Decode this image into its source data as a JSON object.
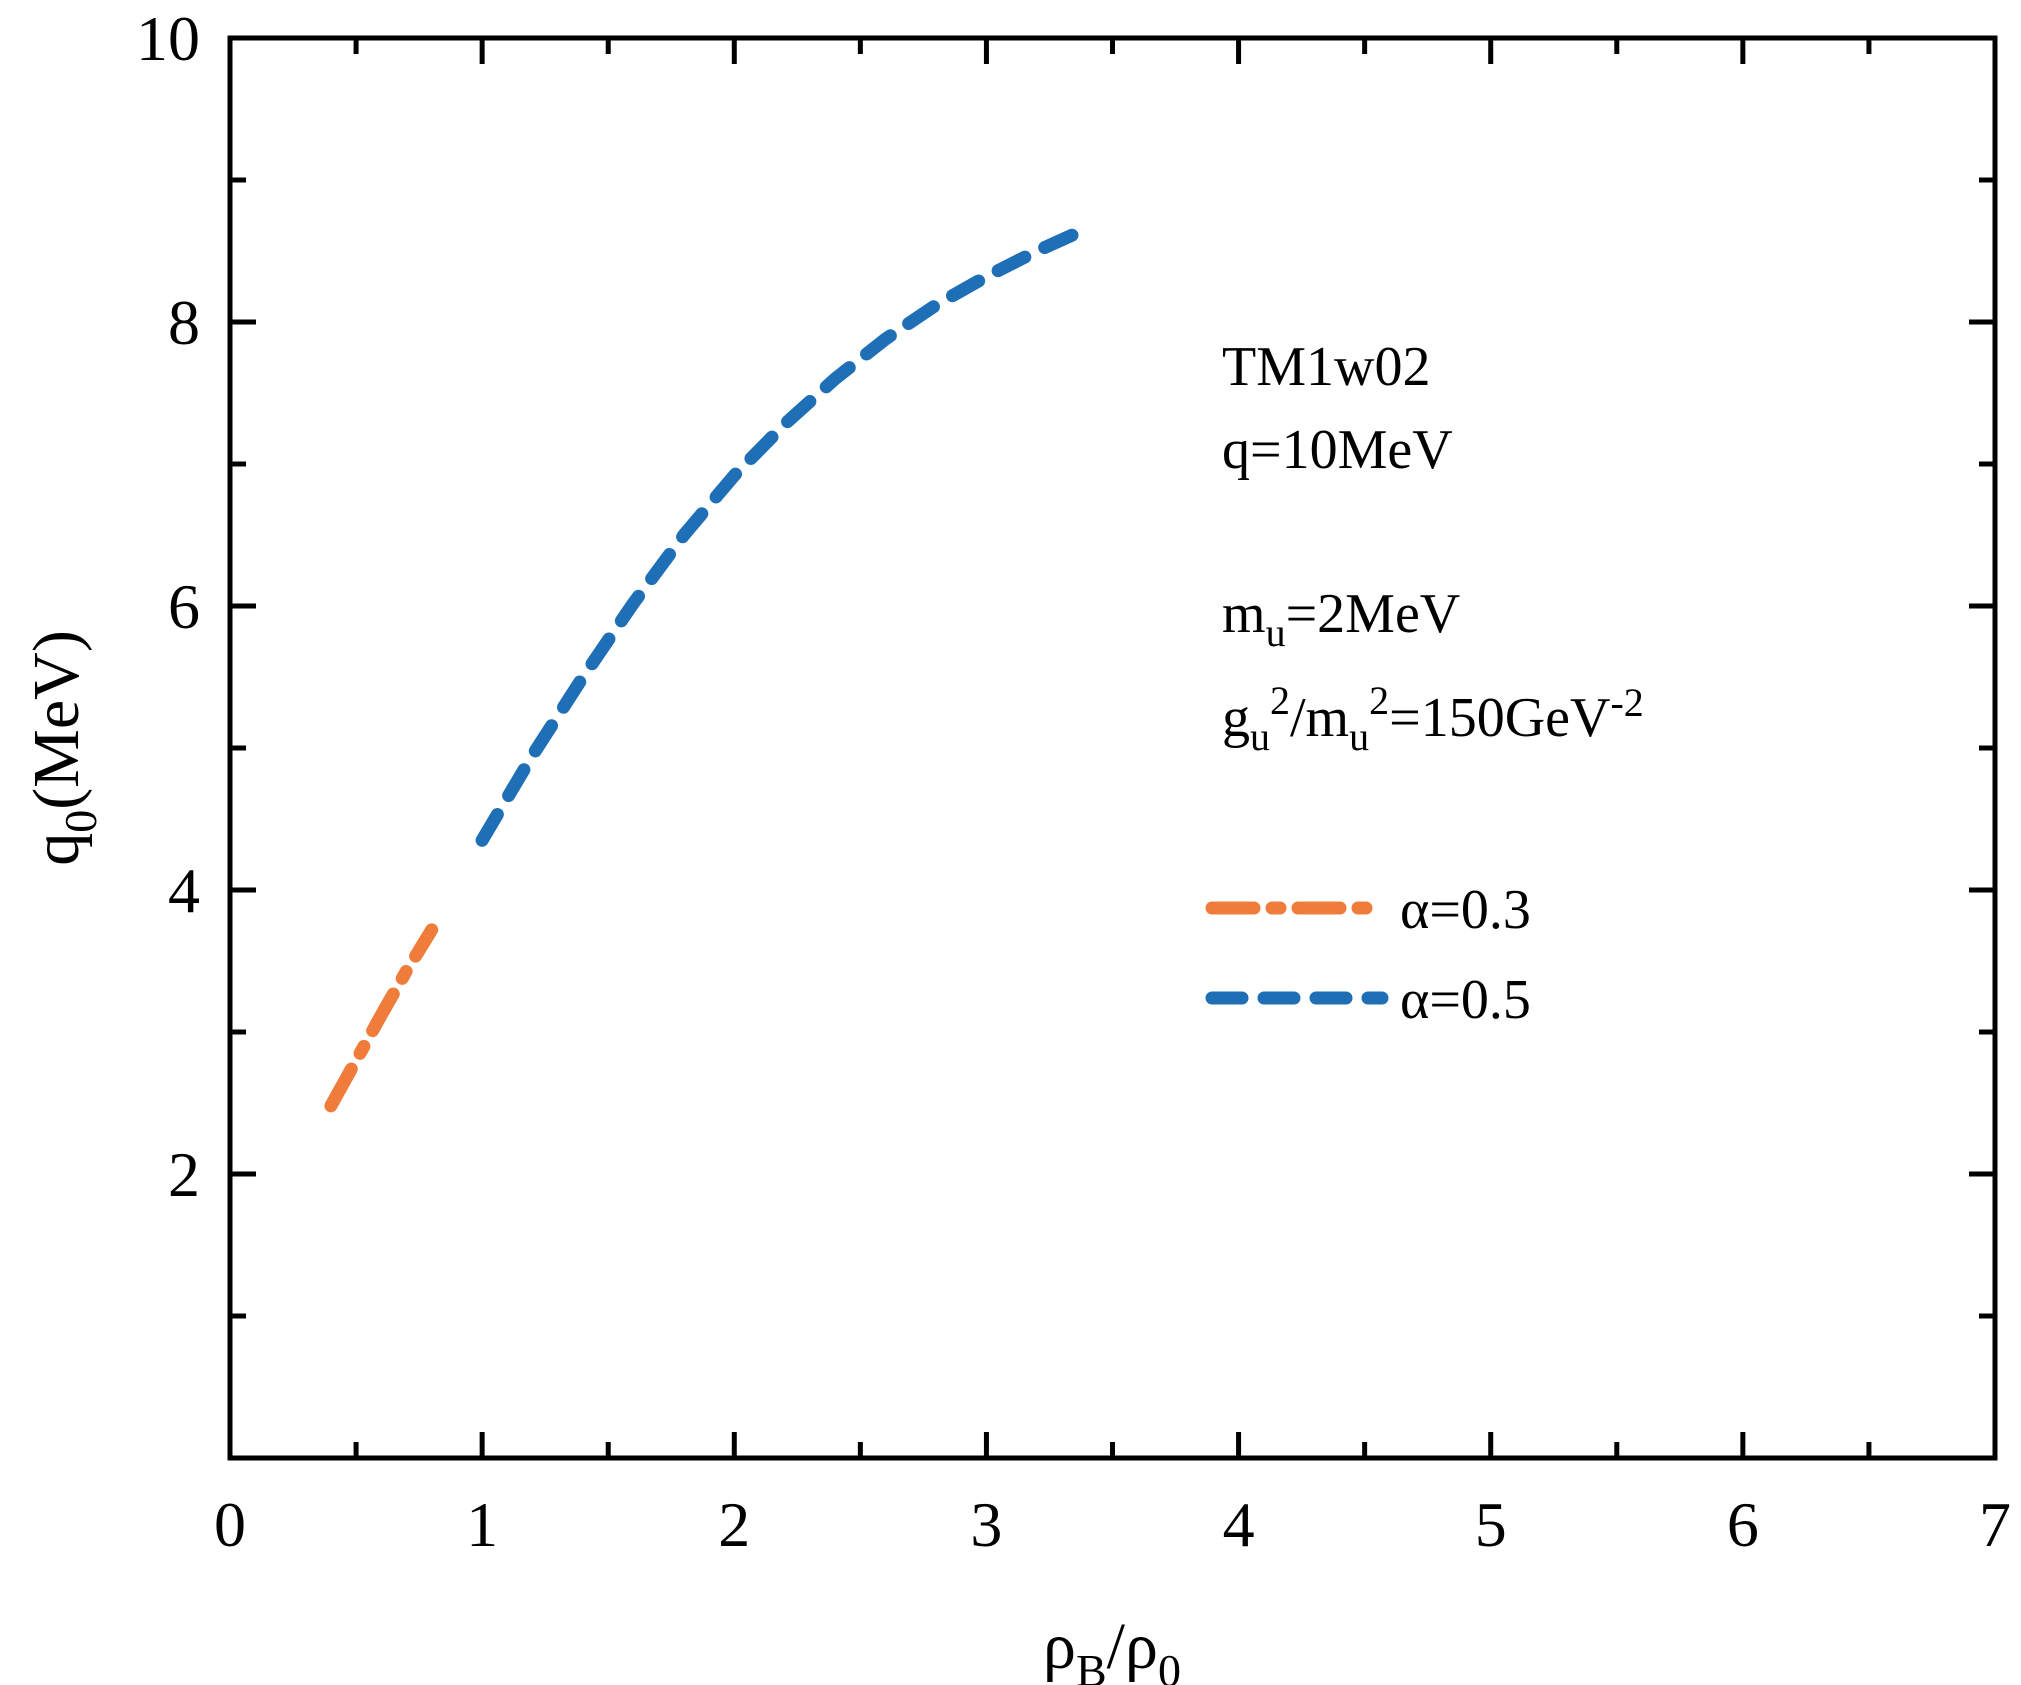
{
  "chart_data": {
    "type": "line",
    "title": "",
    "xlabel": {
      "main": "ρ",
      "sub1": "B",
      "sep": "/ρ",
      "sub2": "0"
    },
    "ylabel": {
      "main": "q",
      "sub": "0",
      "rest": "(MeV)"
    },
    "xlim": [
      0,
      7
    ],
    "ylim": [
      0,
      10
    ],
    "x_ticks": [
      0,
      1,
      2,
      3,
      4,
      5,
      6,
      7
    ],
    "x_tick_labels": [
      "0",
      "1",
      "2",
      "3",
      "4",
      "5",
      "6",
      "7"
    ],
    "y_ticks": [
      2,
      4,
      6,
      8,
      10
    ],
    "y_tick_labels": [
      "2",
      "4",
      "6",
      "8",
      "10"
    ],
    "grid": false,
    "legend_position": "right-center",
    "annotations": {
      "model": "TM1w02",
      "q": "q=10MeV",
      "mu": {
        "base": "m",
        "sub": "u",
        "rest": "=2MeV"
      },
      "coupling": {
        "g": "g",
        "g_sub": "u",
        "g_sup": "2",
        "slash": "/m",
        "m_sub": "u",
        "m_sup": "2",
        "eq": "=150GeV",
        "exp": "-2"
      }
    },
    "series": [
      {
        "name": "α=0.3",
        "color": "#f07c3c",
        "style": "dashdot",
        "x": [
          0.4,
          0.5,
          0.6,
          0.7,
          0.8
        ],
        "y": [
          2.48,
          2.8,
          3.12,
          3.43,
          3.72
        ]
      },
      {
        "name": "α=0.5",
        "color": "#1e6fb5",
        "style": "dashed",
        "x": [
          1.0,
          1.2,
          1.4,
          1.6,
          1.8,
          2.0,
          2.2,
          2.4,
          2.6,
          2.8,
          3.0,
          3.2,
          3.35
        ],
        "y": [
          4.35,
          4.95,
          5.5,
          6.02,
          6.5,
          6.92,
          7.28,
          7.6,
          7.88,
          8.12,
          8.32,
          8.5,
          8.62
        ]
      }
    ]
  }
}
